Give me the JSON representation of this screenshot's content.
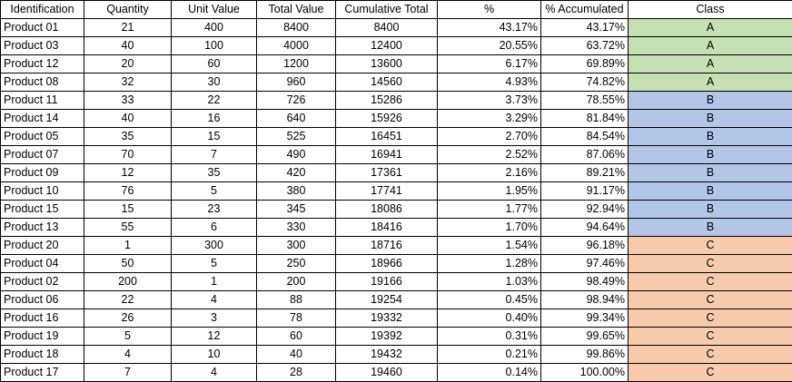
{
  "headers": [
    "Identification",
    "Quantity",
    "Unit Value",
    "Total Value",
    "Cumulative Total",
    "%",
    "% Accumulated",
    "Class"
  ],
  "class_colors": {
    "A": "#c6e0b4",
    "B": "#b4c6e7",
    "C": "#f8cbad"
  },
  "rows": [
    {
      "id": "Product 01",
      "qty": "21",
      "unit": "400",
      "total": "8400",
      "cum": "8400",
      "pct": "43.17%",
      "acc": "43.17%",
      "cls": "A"
    },
    {
      "id": "Product 03",
      "qty": "40",
      "unit": "100",
      "total": "4000",
      "cum": "12400",
      "pct": "20.55%",
      "acc": "63.72%",
      "cls": "A"
    },
    {
      "id": "Product 12",
      "qty": "20",
      "unit": "60",
      "total": "1200",
      "cum": "13600",
      "pct": "6.17%",
      "acc": "69.89%",
      "cls": "A"
    },
    {
      "id": "Product 08",
      "qty": "32",
      "unit": "30",
      "total": "960",
      "cum": "14560",
      "pct": "4.93%",
      "acc": "74.82%",
      "cls": "A"
    },
    {
      "id": "Product 11",
      "qty": "33",
      "unit": "22",
      "total": "726",
      "cum": "15286",
      "pct": "3.73%",
      "acc": "78.55%",
      "cls": "B"
    },
    {
      "id": "Product 14",
      "qty": "40",
      "unit": "16",
      "total": "640",
      "cum": "15926",
      "pct": "3.29%",
      "acc": "81.84%",
      "cls": "B"
    },
    {
      "id": "Product 05",
      "qty": "35",
      "unit": "15",
      "total": "525",
      "cum": "16451",
      "pct": "2.70%",
      "acc": "84.54%",
      "cls": "B"
    },
    {
      "id": "Product 07",
      "qty": "70",
      "unit": "7",
      "total": "490",
      "cum": "16941",
      "pct": "2.52%",
      "acc": "87.06%",
      "cls": "B"
    },
    {
      "id": "Product 09",
      "qty": "12",
      "unit": "35",
      "total": "420",
      "cum": "17361",
      "pct": "2.16%",
      "acc": "89.21%",
      "cls": "B"
    },
    {
      "id": "Product 10",
      "qty": "76",
      "unit": "5",
      "total": "380",
      "cum": "17741",
      "pct": "1.95%",
      "acc": "91.17%",
      "cls": "B"
    },
    {
      "id": "Product 15",
      "qty": "15",
      "unit": "23",
      "total": "345",
      "cum": "18086",
      "pct": "1.77%",
      "acc": "92.94%",
      "cls": "B"
    },
    {
      "id": "Product 13",
      "qty": "55",
      "unit": "6",
      "total": "330",
      "cum": "18416",
      "pct": "1.70%",
      "acc": "94.64%",
      "cls": "B"
    },
    {
      "id": "Product 20",
      "qty": "1",
      "unit": "300",
      "total": "300",
      "cum": "18716",
      "pct": "1.54%",
      "acc": "96.18%",
      "cls": "C"
    },
    {
      "id": "Product 04",
      "qty": "50",
      "unit": "5",
      "total": "250",
      "cum": "18966",
      "pct": "1.28%",
      "acc": "97.46%",
      "cls": "C"
    },
    {
      "id": "Product 02",
      "qty": "200",
      "unit": "1",
      "total": "200",
      "cum": "19166",
      "pct": "1.03%",
      "acc": "98.49%",
      "cls": "C"
    },
    {
      "id": "Product 06",
      "qty": "22",
      "unit": "4",
      "total": "88",
      "cum": "19254",
      "pct": "0.45%",
      "acc": "98.94%",
      "cls": "C"
    },
    {
      "id": "Product 16",
      "qty": "26",
      "unit": "3",
      "total": "78",
      "cum": "19332",
      "pct": "0.40%",
      "acc": "99.34%",
      "cls": "C"
    },
    {
      "id": "Product 19",
      "qty": "5",
      "unit": "12",
      "total": "60",
      "cum": "19392",
      "pct": "0.31%",
      "acc": "99.65%",
      "cls": "C"
    },
    {
      "id": "Product 18",
      "qty": "4",
      "unit": "10",
      "total": "40",
      "cum": "19432",
      "pct": "0.21%",
      "acc": "99.86%",
      "cls": "C"
    },
    {
      "id": "Product 17",
      "qty": "7",
      "unit": "4",
      "total": "28",
      "cum": "19460",
      "pct": "0.14%",
      "acc": "100.00%",
      "cls": "C"
    }
  ]
}
